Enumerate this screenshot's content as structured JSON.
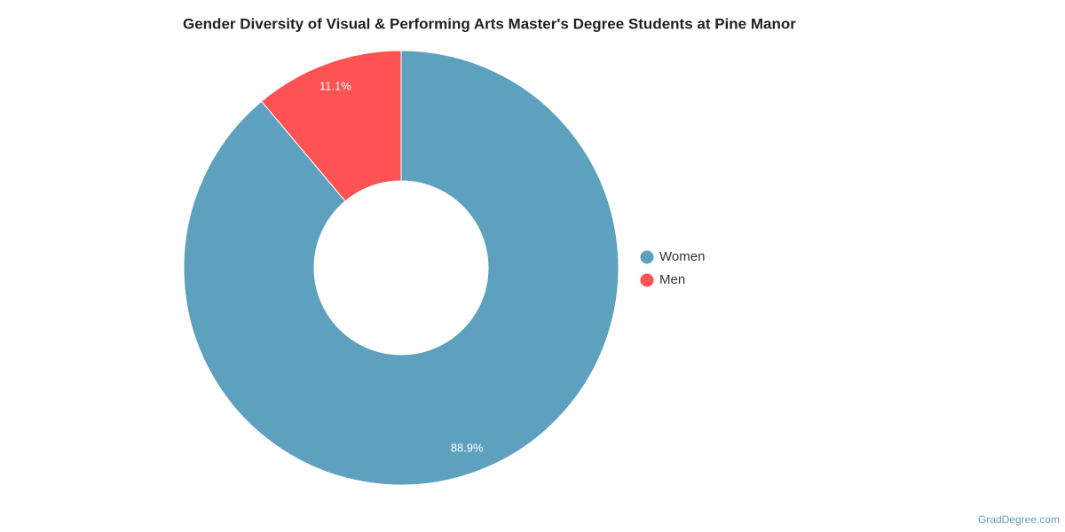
{
  "chart_data": {
    "type": "pie",
    "title": "Gender Diversity of Visual & Performing Arts Master's Degree Students at Pine Manor",
    "categories": [
      "Women",
      "Men"
    ],
    "values": [
      88.9,
      11.1
    ],
    "value_labels": [
      "88.9%",
      "11.1%"
    ],
    "colors": [
      "#5ea1be",
      "#ff5252"
    ],
    "donut": true,
    "legend": "right",
    "source": "GradDegree.com"
  }
}
